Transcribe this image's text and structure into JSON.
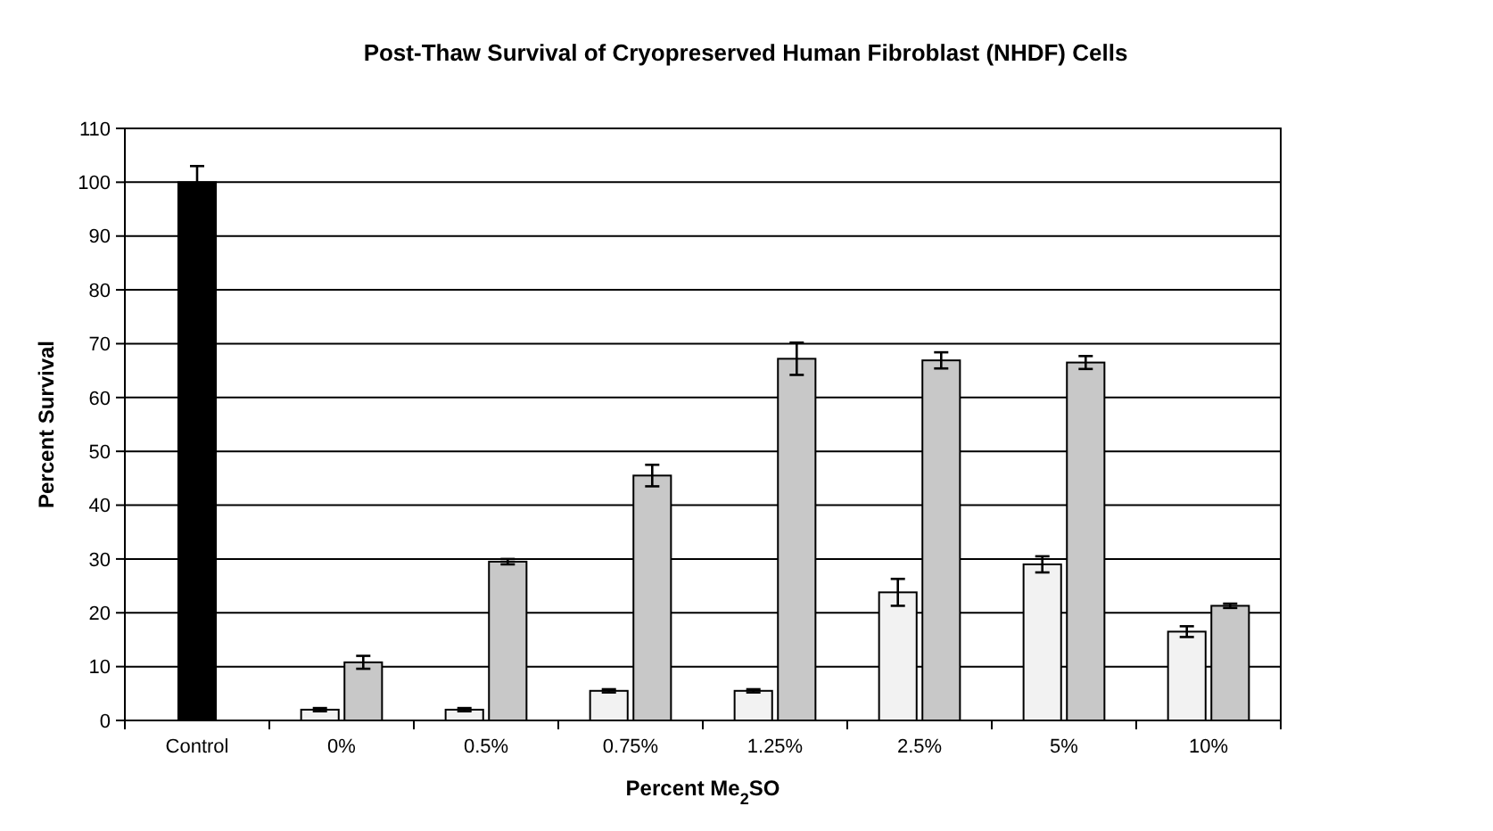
{
  "chart_data": {
    "type": "bar",
    "title": "Post-Thaw Survival of Cryopreserved Human Fibroblast (NHDF) Cells",
    "xlabel": "Percent Me$_{2}$SO",
    "ylabel": "Percent Survival",
    "categories": [
      "Control",
      "0%",
      "0.5%",
      "0.75%",
      "1.25%",
      "2.5%",
      "5%",
      "10%"
    ],
    "series": [
      {
        "color": "#000000",
        "values": [
          100,
          null,
          null,
          null,
          null,
          null,
          null,
          null
        ],
        "errors": [
          3,
          null,
          null,
          null,
          null,
          null,
          null,
          null
        ]
      },
      {
        "color": "#f2f2f2",
        "values": [
          null,
          2,
          2,
          5.5,
          5.5,
          23.8,
          29,
          16.5
        ],
        "errors": [
          null,
          0.3,
          0.3,
          0.3,
          0.3,
          2.5,
          1.5,
          1
        ]
      },
      {
        "color": "#c8c8c8",
        "values": [
          null,
          10.8,
          29.5,
          45.5,
          67.2,
          66.9,
          66.5,
          21.3
        ],
        "errors": [
          null,
          1.2,
          0.5,
          2,
          3,
          1.5,
          1.2,
          0.4
        ]
      }
    ],
    "ylim": [
      0,
      110
    ],
    "yticks": [
      0,
      10,
      20,
      30,
      40,
      50,
      60,
      70,
      80,
      90,
      100,
      110
    ],
    "grid": "y"
  }
}
